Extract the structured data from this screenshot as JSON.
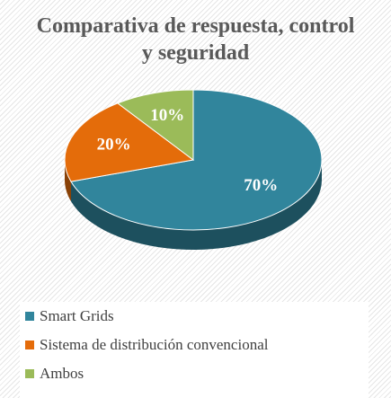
{
  "chart_data": {
    "type": "pie",
    "title": "Comparativa de respuesta, control y seguridad",
    "categories": [
      "Smart Grids",
      "Sistema de distribución convencional",
      "Ambos"
    ],
    "values": [
      70,
      20,
      10
    ],
    "value_labels": [
      "70%",
      "20%",
      "10%"
    ],
    "colors": [
      "#31859c",
      "#e46c0a",
      "#9bbb59"
    ],
    "legend": "bottom"
  }
}
